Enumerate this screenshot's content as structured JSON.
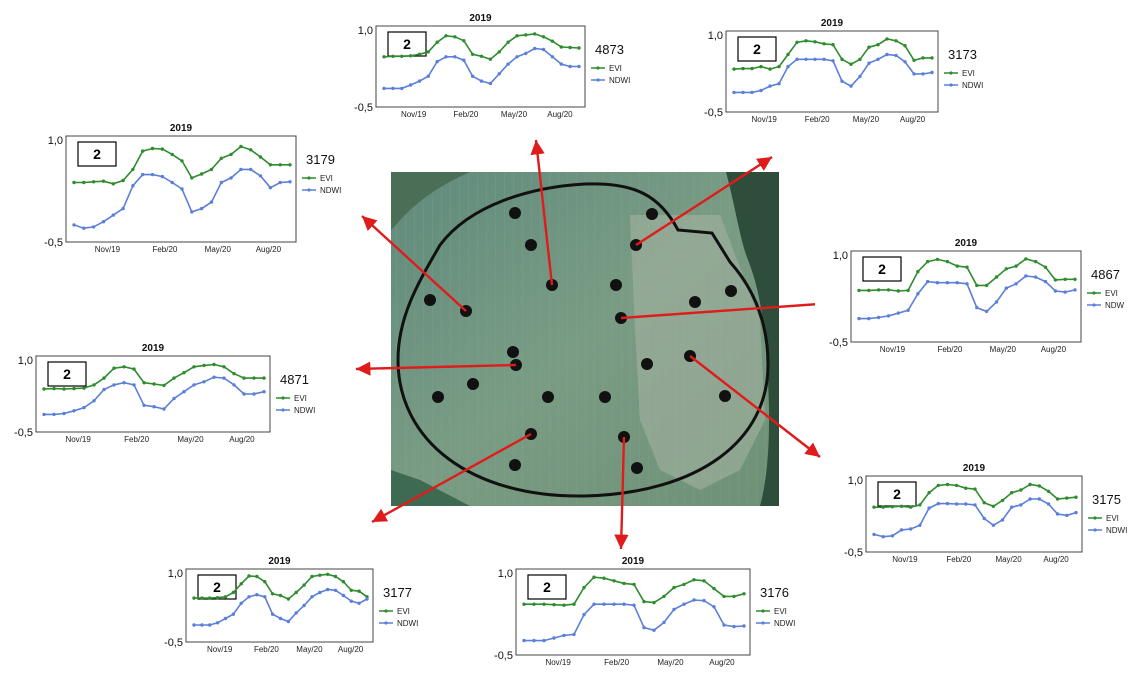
{
  "colors": {
    "evi": "#2e8b2e",
    "ndwi": "#5b7fd9",
    "arrow": "#e01b1b",
    "pivot": "#111111"
  },
  "chart_data": [
    {
      "type": "line",
      "panel_id": "4873",
      "title": "2019",
      "box_label": "2",
      "ylim": [
        -0.5,
        1.0
      ],
      "ytick_labels": [
        "1,0",
        "-0,5"
      ],
      "xtick_labels": [
        "Nov/19",
        "Feb/20",
        "May/20",
        "Aug/20"
      ],
      "series": [
        {
          "name": "EVI",
          "values": [
            0.45,
            0.46,
            0.46,
            0.47,
            0.5,
            0.55,
            0.75,
            0.88,
            0.86,
            0.78,
            0.5,
            0.46,
            0.4,
            0.55,
            0.75,
            0.88,
            0.9,
            0.92,
            0.86,
            0.77,
            0.65,
            0.64,
            0.63
          ]
        },
        {
          "name": "NDWI",
          "values": [
            -0.2,
            -0.2,
            -0.2,
            -0.13,
            -0.05,
            0.05,
            0.35,
            0.45,
            0.45,
            0.38,
            0.05,
            -0.05,
            -0.1,
            0.1,
            0.3,
            0.45,
            0.52,
            0.62,
            0.6,
            0.45,
            0.3,
            0.25,
            0.25
          ]
        }
      ]
    },
    {
      "type": "line",
      "panel_id": "3173",
      "title": "2019",
      "box_label": "2",
      "ylim": [
        -0.5,
        1.0
      ],
      "ytick_labels": [
        "1,0",
        "-0,5"
      ],
      "xtick_labels": [
        "Nov/19",
        "Feb/20",
        "May/20",
        "Aug/20"
      ],
      "series": [
        {
          "name": "EVI",
          "values": [
            0.3,
            0.31,
            0.31,
            0.35,
            0.3,
            0.35,
            0.6,
            0.85,
            0.88,
            0.86,
            0.82,
            0.8,
            0.5,
            0.4,
            0.5,
            0.75,
            0.8,
            0.92,
            0.88,
            0.78,
            0.48,
            0.53,
            0.53
          ]
        },
        {
          "name": "NDWI",
          "values": [
            -0.18,
            -0.18,
            -0.18,
            -0.14,
            -0.05,
            0.0,
            0.35,
            0.5,
            0.5,
            0.5,
            0.5,
            0.47,
            0.05,
            -0.05,
            0.15,
            0.42,
            0.5,
            0.6,
            0.58,
            0.45,
            0.2,
            0.2,
            0.23
          ]
        }
      ]
    },
    {
      "type": "line",
      "panel_id": "3179",
      "title": "2019",
      "box_label": "2",
      "ylim": [
        -0.5,
        1.0
      ],
      "ytick_labels": [
        "1,0",
        "-0,5"
      ],
      "xtick_labels": [
        "Nov/19",
        "Feb/20",
        "May/20",
        "Aug/20"
      ],
      "series": [
        {
          "name": "EVI",
          "values": [
            0.35,
            0.35,
            0.36,
            0.37,
            0.33,
            0.38,
            0.55,
            0.83,
            0.87,
            0.86,
            0.78,
            0.68,
            0.42,
            0.48,
            0.55,
            0.72,
            0.78,
            0.9,
            0.85,
            0.74,
            0.62,
            0.62,
            0.62
          ]
        },
        {
          "name": "NDWI",
          "values": [
            -0.3,
            -0.35,
            -0.33,
            -0.25,
            -0.15,
            -0.05,
            0.3,
            0.47,
            0.47,
            0.44,
            0.35,
            0.25,
            -0.1,
            -0.05,
            0.05,
            0.35,
            0.42,
            0.55,
            0.55,
            0.45,
            0.27,
            0.35,
            0.36
          ]
        }
      ]
    },
    {
      "type": "line",
      "panel_id": "4867",
      "title": "2019",
      "box_label": "2",
      "ylim": [
        -0.5,
        1.0
      ],
      "ytick_labels": [
        "1,0",
        "-0,5"
      ],
      "xtick_labels": [
        "Nov/19",
        "Feb/20",
        "May/20",
        "Aug/20"
      ],
      "series": [
        {
          "name": "EVI",
          "values": [
            0.36,
            0.36,
            0.37,
            0.37,
            0.35,
            0.36,
            0.7,
            0.88,
            0.92,
            0.88,
            0.8,
            0.78,
            0.45,
            0.45,
            0.6,
            0.75,
            0.8,
            0.93,
            0.88,
            0.78,
            0.55,
            0.56,
            0.56
          ]
        },
        {
          "name": "NDW",
          "values": [
            -0.15,
            -0.15,
            -0.13,
            -0.1,
            -0.05,
            0.0,
            0.3,
            0.52,
            0.5,
            0.5,
            0.5,
            0.48,
            0.05,
            -0.02,
            0.15,
            0.4,
            0.48,
            0.62,
            0.6,
            0.52,
            0.35,
            0.33,
            0.37
          ]
        }
      ]
    },
    {
      "type": "line",
      "panel_id": "4871",
      "title": "2019",
      "box_label": "2",
      "ylim": [
        -0.5,
        1.0
      ],
      "ytick_labels": [
        "1,0",
        "-0,5"
      ],
      "xtick_labels": [
        "Nov/19",
        "Feb/20",
        "May/20",
        "Aug/20"
      ],
      "series": [
        {
          "name": "EVI",
          "values": [
            0.36,
            0.37,
            0.36,
            0.37,
            0.38,
            0.45,
            0.6,
            0.82,
            0.85,
            0.8,
            0.5,
            0.47,
            0.44,
            0.6,
            0.72,
            0.85,
            0.88,
            0.9,
            0.85,
            0.7,
            0.6,
            0.6,
            0.6
          ]
        },
        {
          "name": "NDWI",
          "values": [
            -0.2,
            -0.2,
            -0.18,
            -0.12,
            -0.05,
            0.1,
            0.35,
            0.45,
            0.5,
            0.45,
            0.0,
            -0.03,
            -0.08,
            0.15,
            0.3,
            0.45,
            0.52,
            0.62,
            0.6,
            0.45,
            0.25,
            0.25,
            0.3
          ]
        }
      ]
    },
    {
      "type": "line",
      "panel_id": "3175",
      "title": "2019",
      "box_label": "2",
      "ylim": [
        -0.5,
        1.0
      ],
      "ytick_labels": [
        "1,0",
        "-0,5"
      ],
      "xtick_labels": [
        "Nov/19",
        "Feb/20",
        "May/20",
        "Aug/20"
      ],
      "series": [
        {
          "name": "EVI",
          "values": [
            0.4,
            0.4,
            0.41,
            0.42,
            0.4,
            0.45,
            0.72,
            0.88,
            0.9,
            0.88,
            0.82,
            0.8,
            0.5,
            0.42,
            0.55,
            0.72,
            0.78,
            0.9,
            0.87,
            0.75,
            0.58,
            0.6,
            0.62
          ]
        },
        {
          "name": "NDWI",
          "values": [
            -0.2,
            -0.25,
            -0.23,
            -0.1,
            -0.08,
            0.0,
            0.38,
            0.48,
            0.48,
            0.47,
            0.47,
            0.45,
            0.15,
            0.0,
            0.12,
            0.4,
            0.45,
            0.58,
            0.58,
            0.47,
            0.25,
            0.22,
            0.28
          ]
        }
      ]
    },
    {
      "type": "line",
      "panel_id": "3177",
      "title": "2019",
      "box_label": "2",
      "ylim": [
        -0.5,
        1.0
      ],
      "ytick_labels": [
        "1,0",
        "-0,5"
      ],
      "xtick_labels": [
        "Nov/19",
        "Feb/20",
        "May/20",
        "Aug/20"
      ],
      "series": [
        {
          "name": "EVI",
          "values": [
            0.42,
            0.42,
            0.42,
            0.43,
            0.45,
            0.55,
            0.75,
            0.93,
            0.92,
            0.8,
            0.52,
            0.48,
            0.4,
            0.55,
            0.72,
            0.92,
            0.95,
            0.97,
            0.92,
            0.8,
            0.6,
            0.58,
            0.45
          ]
        },
        {
          "name": "NDWI",
          "values": [
            -0.2,
            -0.2,
            -0.2,
            -0.15,
            -0.05,
            0.05,
            0.3,
            0.45,
            0.5,
            0.45,
            0.05,
            -0.05,
            -0.12,
            0.08,
            0.25,
            0.45,
            0.55,
            0.62,
            0.6,
            0.48,
            0.35,
            0.3,
            0.4
          ]
        }
      ]
    },
    {
      "type": "line",
      "panel_id": "3176",
      "title": "2019",
      "box_label": "2",
      "ylim": [
        -0.5,
        1.0
      ],
      "ytick_labels": [
        "1,0",
        "-0,5"
      ],
      "xtick_labels": [
        "Nov/19",
        "Feb/20",
        "May/20",
        "Aug/20"
      ],
      "series": [
        {
          "name": "EVI",
          "values": [
            0.4,
            0.4,
            0.4,
            0.39,
            0.38,
            0.4,
            0.72,
            0.92,
            0.9,
            0.85,
            0.8,
            0.78,
            0.45,
            0.43,
            0.55,
            0.72,
            0.78,
            0.87,
            0.85,
            0.7,
            0.55,
            0.55,
            0.6
          ]
        },
        {
          "name": "NDWI",
          "values": [
            -0.3,
            -0.3,
            -0.3,
            -0.25,
            -0.2,
            -0.18,
            0.2,
            0.4,
            0.4,
            0.4,
            0.4,
            0.38,
            -0.05,
            -0.1,
            0.05,
            0.3,
            0.4,
            0.48,
            0.47,
            0.35,
            0.0,
            -0.03,
            -0.02
          ]
        }
      ]
    }
  ]
}
